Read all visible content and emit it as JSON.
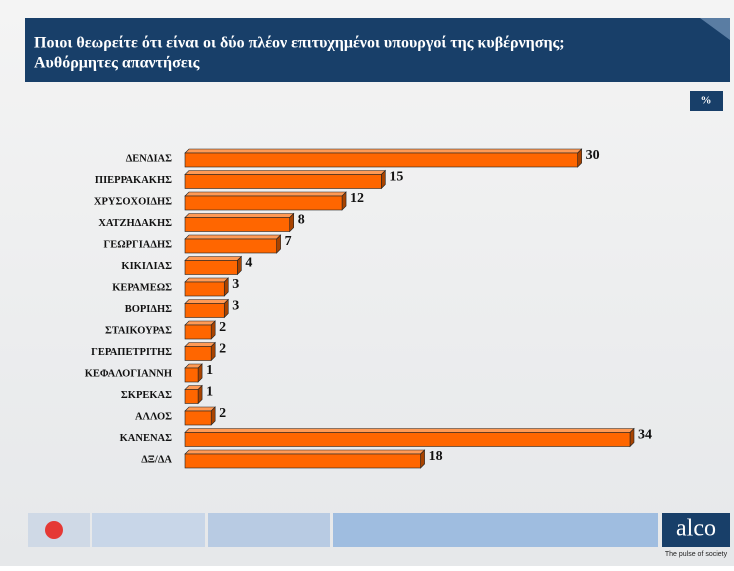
{
  "chart_data": {
    "type": "bar",
    "orientation": "horizontal",
    "title": "Ποιοι θεωρείτε ότι είναι οι δύο πλέον επιτυχημένοι υπουργοί της κυβέρνησης;",
    "subtitle": "Αυθόρμητες απαντήσεις",
    "unit_badge": "%",
    "categories": [
      "ΔΕΝΔΙΑΣ",
      "ΠΙΕΡΡΑΚΑΚΗΣ",
      "ΧΡΥΣΟΧΟΙΔΗΣ",
      "ΧΑΤΖΗΔΑΚΗΣ",
      "ΓΕΩΡΓΙΑΔΗΣ",
      "ΚΙΚΙΛΙΑΣ",
      "ΚΕΡΑΜΕΩΣ",
      "ΒΟΡΙΔΗΣ",
      "ΣΤΑΙΚΟΥΡΑΣ",
      "ΓΕΡΑΠΕΤΡΙΤΗΣ",
      "ΚΕΦΑΛΟΓΙΑΝΝΗ",
      "ΣΚΡΕΚΑΣ",
      "ΑΛΛΟΣ",
      "ΚΑΝΕΝΑΣ",
      "ΔΞ/ΔΑ"
    ],
    "values": [
      30,
      15,
      12,
      8,
      7,
      4,
      3,
      3,
      2,
      2,
      1,
      1,
      2,
      34,
      18
    ],
    "color": "#ff6600"
  },
  "footer": {
    "brand": "alco",
    "tagline": "The pulse of society"
  }
}
